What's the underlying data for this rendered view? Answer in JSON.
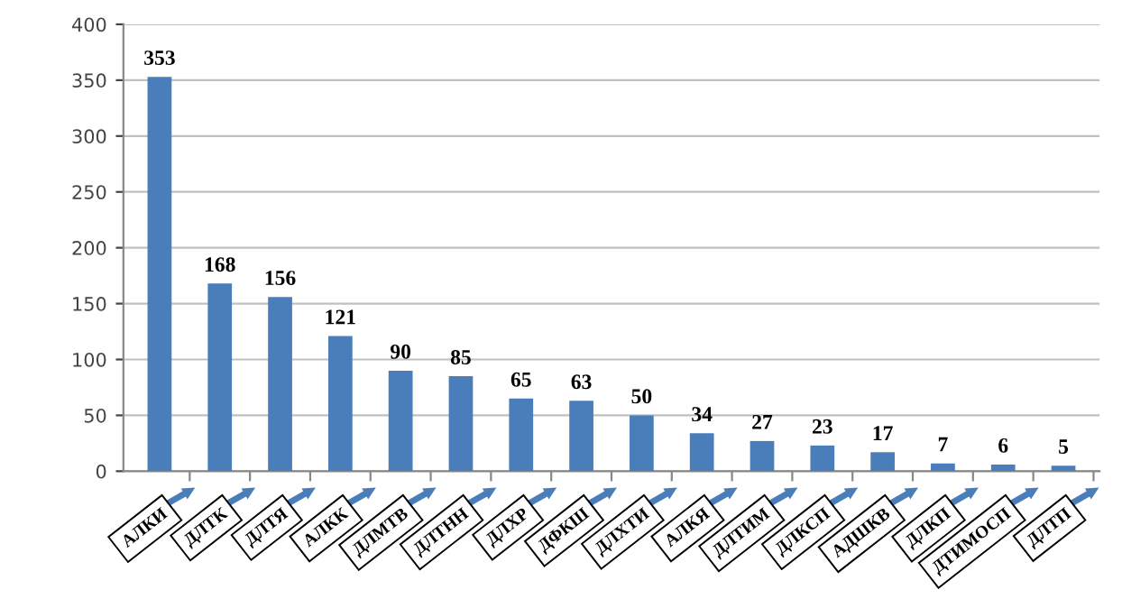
{
  "chart_data": {
    "type": "bar",
    "categories": [
      "АЛКИ",
      "ДЛТК",
      "ДЛТЯ",
      "АЛКК",
      "ДЛМТВ",
      "ДЛТНН",
      "ДЛХР",
      "ДФКШ",
      "ДЛХТИ",
      "АЛКЯ",
      "ДЛТИМ",
      "ДЛКСП",
      "АДШКВ",
      "ДЛКП",
      "ДТИМОСП",
      "ДЛТП"
    ],
    "values": [
      353,
      168,
      156,
      121,
      90,
      85,
      65,
      63,
      50,
      34,
      27,
      23,
      17,
      7,
      6,
      5
    ],
    "color": "#4a7ebb",
    "ylim": [
      0,
      400
    ],
    "yticks": [
      0,
      50,
      100,
      150,
      200,
      250,
      300,
      350,
      400
    ],
    "grid": "y",
    "data_labels": true
  }
}
